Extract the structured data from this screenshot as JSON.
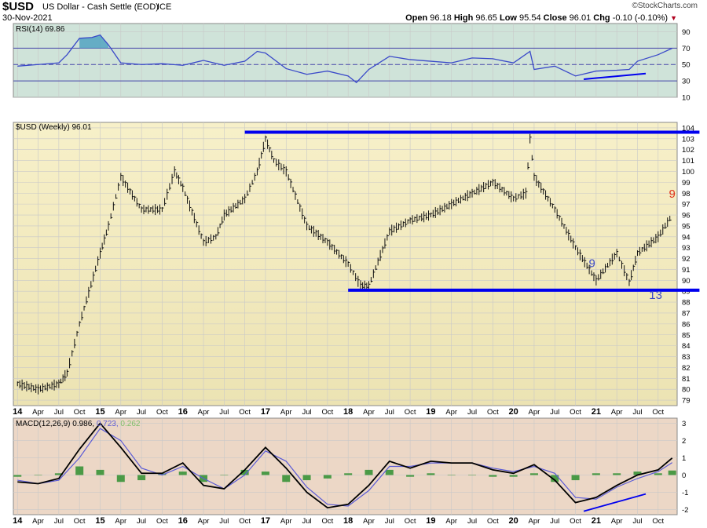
{
  "header": {
    "symbol": "$USD",
    "name": "US Dollar - Cash Settle (EOD)",
    "exchange": "ICE",
    "date": "30-Nov-2021",
    "watermark": "©StockCharts.com",
    "ohlc": {
      "open_label": "Open",
      "open": "96.18",
      "high_label": "High",
      "high": "96.65",
      "low_label": "Low",
      "low": "95.54",
      "close_label": "Close",
      "close": "96.01",
      "chg_label": "Chg",
      "chg": "-0.10 (-0.10%)"
    }
  },
  "colors": {
    "rsi_bg": "#cfe3d9",
    "price_bg_top": "#f7f0c9",
    "price_bg_bottom": "#ece3b3",
    "macd_bg": "#ecd7c6",
    "trendline": "#0000ee",
    "rsi_line": "#3a49c9",
    "macd_signal": "#5b5bd6",
    "histogram": "#2f8f2f",
    "annotation_blue": "#3a49c9",
    "annotation_red": "#e0331c"
  },
  "chart_data": [
    {
      "type": "line",
      "panel": "rsi",
      "label": "RSI(14) 69.86",
      "ylim": [
        10,
        100
      ],
      "yticks": [
        10,
        30,
        50,
        70,
        90
      ],
      "levels": [
        70,
        50,
        30
      ],
      "grid": true,
      "series": [
        {
          "name": "RSI(14)",
          "x": [
            2014.0,
            2014.25,
            2014.5,
            2014.6,
            2014.75,
            2014.9,
            2015.0,
            2015.1,
            2015.25,
            2015.5,
            2015.75,
            2016.0,
            2016.25,
            2016.5,
            2016.75,
            2016.9,
            2017.0,
            2017.25,
            2017.5,
            2017.75,
            2018.0,
            2018.1,
            2018.25,
            2018.5,
            2018.75,
            2019.0,
            2019.25,
            2019.5,
            2019.75,
            2020.0,
            2020.2,
            2020.25,
            2020.5,
            2020.75,
            2021.0,
            2021.25,
            2021.4,
            2021.5,
            2021.75,
            2021.92
          ],
          "values": [
            48,
            50,
            52,
            62,
            82,
            83,
            86,
            74,
            52,
            50,
            51,
            49,
            55,
            49,
            54,
            66,
            64,
            45,
            38,
            42,
            36,
            28,
            44,
            60,
            56,
            54,
            52,
            58,
            57,
            52,
            66,
            44,
            48,
            36,
            42,
            43,
            44,
            54,
            62,
            69.86
          ]
        }
      ]
    },
    {
      "type": "bar",
      "panel": "price",
      "label": "$USD (Weekly) 96.01",
      "ylim": [
        78.5,
        104.5
      ],
      "yticks": [
        79,
        80,
        81,
        82,
        83,
        84,
        85,
        86,
        87,
        88,
        89,
        90,
        91,
        92,
        93,
        94,
        95,
        96,
        97,
        98,
        99,
        100,
        101,
        102,
        103,
        104
      ],
      "grid": true,
      "series": [
        {
          "name": "$USD (Weekly)",
          "x": [
            2014.0,
            2014.25,
            2014.5,
            2014.6,
            2014.75,
            2015.0,
            2015.1,
            2015.25,
            2015.5,
            2015.75,
            2015.9,
            2016.0,
            2016.25,
            2016.4,
            2016.5,
            2016.75,
            2016.9,
            2017.0,
            2017.1,
            2017.25,
            2017.5,
            2017.75,
            2018.0,
            2018.15,
            2018.25,
            2018.5,
            2018.75,
            2019.0,
            2019.25,
            2019.5,
            2019.75,
            2020.0,
            2020.15,
            2020.2,
            2020.25,
            2020.5,
            2020.75,
            2021.0,
            2021.25,
            2021.4,
            2021.5,
            2021.75,
            2021.92
          ],
          "values": [
            80.5,
            80.0,
            80.5,
            81.5,
            86.0,
            92.5,
            95.0,
            99.5,
            96.5,
            96.5,
            100.0,
            98.5,
            93.5,
            94.0,
            96.0,
            97.5,
            100.0,
            103.0,
            101.0,
            100.0,
            95.0,
            93.5,
            91.5,
            89.5,
            89.5,
            94.5,
            95.5,
            96.0,
            97.0,
            98.0,
            99.0,
            97.5,
            98.0,
            103.0,
            99.5,
            96.5,
            93.0,
            90.0,
            92.5,
            89.8,
            92.5,
            94.0,
            96.01
          ]
        }
      ],
      "annotations": [
        {
          "text": "9",
          "x": 2020.95,
          "y": 91.2,
          "color": "blue"
        },
        {
          "text": "13",
          "x": 2021.72,
          "y": 88.3,
          "color": "blue"
        },
        {
          "text": "9",
          "x": 2021.92,
          "y": 97.6,
          "color": "red"
        }
      ],
      "trendlines": [
        {
          "x": [
            2016.75,
            2022.25
          ],
          "y": [
            103.6,
            103.6
          ]
        },
        {
          "x": [
            2018.0,
            2022.25
          ],
          "y": [
            89.1,
            89.1
          ]
        }
      ]
    },
    {
      "type": "line",
      "panel": "macd",
      "label": "MACD(12,26,9)",
      "values_label": [
        "0.986",
        "0.723",
        "0.262"
      ],
      "ylim": [
        -2.3,
        3.3
      ],
      "yticks": [
        -2,
        -1,
        0,
        1,
        2,
        3
      ],
      "grid": true,
      "series": [
        {
          "name": "MACD",
          "x": [
            2014.0,
            2014.25,
            2014.5,
            2014.75,
            2015.0,
            2015.25,
            2015.5,
            2015.75,
            2016.0,
            2016.25,
            2016.5,
            2016.75,
            2017.0,
            2017.25,
            2017.5,
            2017.75,
            2018.0,
            2018.25,
            2018.5,
            2018.75,
            2019.0,
            2019.25,
            2019.5,
            2019.75,
            2020.0,
            2020.25,
            2020.5,
            2020.75,
            2021.0,
            2021.25,
            2021.5,
            2021.75,
            2021.92
          ],
          "values": [
            -0.4,
            -0.5,
            -0.2,
            1.5,
            3.0,
            1.6,
            0.1,
            0.1,
            0.7,
            -0.6,
            -0.8,
            0.3,
            1.6,
            0.4,
            -1.0,
            -1.9,
            -1.7,
            -0.6,
            0.8,
            0.4,
            0.8,
            0.7,
            0.7,
            0.3,
            0.1,
            0.6,
            -0.3,
            -1.6,
            -1.3,
            -0.6,
            0.0,
            0.3,
            0.986
          ]
        },
        {
          "name": "Signal",
          "x": [
            2014.0,
            2014.25,
            2014.5,
            2014.75,
            2015.0,
            2015.25,
            2015.5,
            2015.75,
            2016.0,
            2016.25,
            2016.5,
            2016.75,
            2017.0,
            2017.25,
            2017.5,
            2017.75,
            2018.0,
            2018.25,
            2018.5,
            2018.75,
            2019.0,
            2019.25,
            2019.5,
            2019.75,
            2020.0,
            2020.25,
            2020.5,
            2020.75,
            2021.0,
            2021.25,
            2021.5,
            2021.75,
            2021.92
          ],
          "values": [
            -0.3,
            -0.5,
            -0.3,
            1.0,
            2.7,
            2.0,
            0.4,
            0.0,
            0.5,
            -0.2,
            -0.8,
            0.0,
            1.4,
            0.8,
            -0.7,
            -1.7,
            -1.8,
            -0.9,
            0.5,
            0.5,
            0.7,
            0.7,
            0.7,
            0.4,
            0.2,
            0.5,
            0.1,
            -1.3,
            -1.4,
            -0.7,
            -0.2,
            0.2,
            0.723
          ]
        },
        {
          "name": "Histogram",
          "x": [
            2014.0,
            2014.25,
            2014.5,
            2014.75,
            2015.0,
            2015.25,
            2015.5,
            2015.75,
            2016.0,
            2016.25,
            2016.5,
            2016.75,
            2017.0,
            2017.25,
            2017.5,
            2017.75,
            2018.0,
            2018.25,
            2018.5,
            2018.75,
            2019.0,
            2019.25,
            2019.5,
            2019.75,
            2020.0,
            2020.25,
            2020.5,
            2020.75,
            2021.0,
            2021.25,
            2021.5,
            2021.75,
            2021.92
          ],
          "values": [
            -0.1,
            0.0,
            0.1,
            0.5,
            0.3,
            -0.4,
            -0.3,
            0.1,
            0.2,
            -0.4,
            0.0,
            0.3,
            0.2,
            -0.4,
            -0.3,
            -0.2,
            0.1,
            0.3,
            0.3,
            -0.1,
            0.1,
            0.0,
            0.0,
            -0.1,
            -0.1,
            0.1,
            -0.4,
            -0.3,
            0.1,
            0.1,
            0.2,
            0.1,
            0.262
          ]
        }
      ],
      "trendlines": [
        {
          "x": [
            2020.85,
            2021.6
          ],
          "y": [
            -2.1,
            -1.1
          ]
        }
      ]
    }
  ],
  "rsi_trendline": {
    "x": [
      2020.85,
      2021.6
    ],
    "y": [
      32,
      39
    ]
  },
  "x_axis": {
    "xlim": [
      2013.95,
      2021.98
    ],
    "ticks": [
      {
        "x": 2014.0,
        "label": "14",
        "bold": true
      },
      {
        "x": 2014.25,
        "label": "Apr"
      },
      {
        "x": 2014.5,
        "label": "Jul"
      },
      {
        "x": 2014.75,
        "label": "Oct"
      },
      {
        "x": 2015.0,
        "label": "15",
        "bold": true
      },
      {
        "x": 2015.25,
        "label": "Apr"
      },
      {
        "x": 2015.5,
        "label": "Jul"
      },
      {
        "x": 2015.75,
        "label": "Oct"
      },
      {
        "x": 2016.0,
        "label": "16",
        "bold": true
      },
      {
        "x": 2016.25,
        "label": "Apr"
      },
      {
        "x": 2016.5,
        "label": "Jul"
      },
      {
        "x": 2016.75,
        "label": "Oct"
      },
      {
        "x": 2017.0,
        "label": "17",
        "bold": true
      },
      {
        "x": 2017.25,
        "label": "Apr"
      },
      {
        "x": 2017.5,
        "label": "Jul"
      },
      {
        "x": 2017.75,
        "label": "Oct"
      },
      {
        "x": 2018.0,
        "label": "18",
        "bold": true
      },
      {
        "x": 2018.25,
        "label": "Apr"
      },
      {
        "x": 2018.5,
        "label": "Jul"
      },
      {
        "x": 2018.75,
        "label": "Oct"
      },
      {
        "x": 2019.0,
        "label": "19",
        "bold": true
      },
      {
        "x": 2019.25,
        "label": "Apr"
      },
      {
        "x": 2019.5,
        "label": "Jul"
      },
      {
        "x": 2019.75,
        "label": "Oct"
      },
      {
        "x": 2020.0,
        "label": "20",
        "bold": true
      },
      {
        "x": 2020.25,
        "label": "Apr"
      },
      {
        "x": 2020.5,
        "label": "Jul"
      },
      {
        "x": 2020.75,
        "label": "Oct"
      },
      {
        "x": 2021.0,
        "label": "21",
        "bold": true
      },
      {
        "x": 2021.25,
        "label": "Apr"
      },
      {
        "x": 2021.5,
        "label": "Jul"
      },
      {
        "x": 2021.75,
        "label": "Oct"
      }
    ]
  }
}
